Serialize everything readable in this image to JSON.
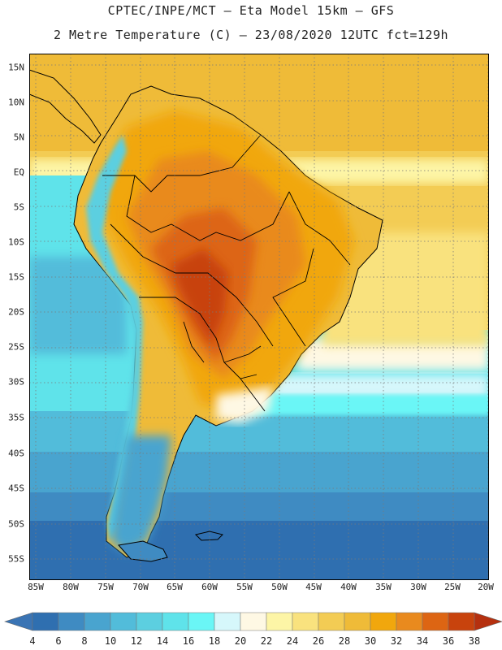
{
  "header": {
    "line1": "CPTEC/INPE/MCT –  Eta Model 15km – GFS",
    "line2": "2 Metre Temperature (C) – 23/08/2020 12UTC fct=129h"
  },
  "map": {
    "lat_ticks": [
      "15N",
      "10N",
      "5N",
      "EQ",
      "5S",
      "10S",
      "15S",
      "20S",
      "25S",
      "30S",
      "35S",
      "40S",
      "45S",
      "50S",
      "55S"
    ],
    "lon_ticks": [
      "85W",
      "80W",
      "75W",
      "70W",
      "65W",
      "60W",
      "55W",
      "50W",
      "45W",
      "40W",
      "35W",
      "30W",
      "25W",
      "20W"
    ]
  },
  "colorbar": {
    "labels": [
      "4",
      "6",
      "8",
      "10",
      "12",
      "14",
      "16",
      "18",
      "20",
      "22",
      "24",
      "26",
      "28",
      "30",
      "32",
      "34",
      "36",
      "38"
    ],
    "low_color": "#3a74b4",
    "high_color": "#b5300f",
    "colors": [
      "#2f6fb0",
      "#3f8bc2",
      "#49a4cf",
      "#52bcda",
      "#5ccfe0",
      "#5fe3ea",
      "#6af6f6",
      "#d6f7fb",
      "#fef8e4",
      "#fdf5a6",
      "#f9e27e",
      "#f3cc54",
      "#efbb38",
      "#f1a70d",
      "#e98a1e",
      "#dd6513",
      "#c8430d"
    ]
  }
}
